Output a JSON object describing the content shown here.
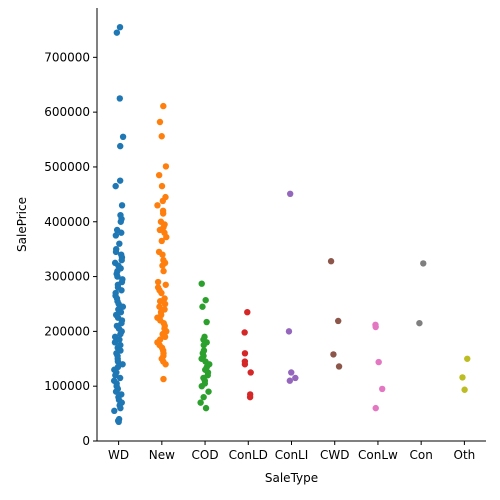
{
  "chart_data": {
    "type": "scatter",
    "subtype": "strip",
    "xlabel": "SaleType",
    "ylabel": "SalePrice",
    "ylim": [
      0,
      790000
    ],
    "yticks": [
      0,
      100000,
      200000,
      300000,
      400000,
      500000,
      600000,
      700000
    ],
    "grid": false,
    "categories": [
      "WD",
      "New",
      "COD",
      "ConLD",
      "ConLI",
      "CWD",
      "ConLw",
      "Con",
      "Oth"
    ],
    "colors": [
      "#1f77b4",
      "#ff7f0e",
      "#2ca02c",
      "#d62728",
      "#9467bd",
      "#8c564b",
      "#e377c2",
      "#7f7f7f",
      "#bcbd22"
    ],
    "series": [
      {
        "category": "WD",
        "values": [
          755000,
          745000,
          625000,
          555000,
          538000,
          475000,
          465000,
          430000,
          412000,
          405000,
          400000,
          385000,
          380000,
          375000,
          360000,
          350000,
          345000,
          340000,
          335000,
          330000,
          325000,
          320000,
          315000,
          310000,
          305000,
          300000,
          295000,
          290000,
          285000,
          280000,
          275000,
          270000,
          265000,
          260000,
          255000,
          250000,
          245000,
          240000,
          235000,
          230000,
          225000,
          220000,
          215000,
          210000,
          205000,
          200000,
          195000,
          190000,
          185000,
          180000,
          175000,
          170000,
          165000,
          160000,
          155000,
          150000,
          145000,
          140000,
          135000,
          130000,
          125000,
          120000,
          115000,
          110000,
          105000,
          100000,
          95000,
          90000,
          85000,
          80000,
          75000,
          70000,
          65000,
          60000,
          55000,
          40000,
          37000,
          35000
        ]
      },
      {
        "category": "New",
        "values": [
          611000,
          582000,
          556000,
          501000,
          485000,
          465000,
          445000,
          438000,
          430000,
          420000,
          415000,
          400000,
          395000,
          390000,
          385000,
          380000,
          372000,
          365000,
          345000,
          340000,
          330000,
          325000,
          320000,
          310000,
          290000,
          285000,
          280000,
          275000,
          270000,
          260000,
          255000,
          250000,
          245000,
          240000,
          235000,
          230000,
          225000,
          220000,
          215000,
          210000,
          205000,
          200000,
          195000,
          190000,
          185000,
          180000,
          175000,
          170000,
          165000,
          160000,
          155000,
          150000,
          145000,
          140000,
          113000
        ]
      },
      {
        "category": "COD",
        "values": [
          287000,
          257000,
          245000,
          217000,
          190000,
          185000,
          180000,
          175000,
          165000,
          160000,
          155000,
          150000,
          145000,
          140000,
          135000,
          130000,
          125000,
          120000,
          115000,
          110000,
          105000,
          100000,
          90000,
          80000,
          70000,
          60000
        ]
      },
      {
        "category": "ConLD",
        "values": [
          235000,
          198000,
          160000,
          145000,
          140000,
          125000,
          85000,
          80000
        ]
      },
      {
        "category": "ConLI",
        "values": [
          451000,
          200000,
          125000,
          115000,
          110000
        ]
      },
      {
        "category": "CWD",
        "values": [
          328000,
          219000,
          158000,
          136000
        ]
      },
      {
        "category": "ConLw",
        "values": [
          212000,
          208000,
          144000,
          95000,
          60000
        ]
      },
      {
        "category": "Con",
        "values": [
          324000,
          215000
        ]
      },
      {
        "category": "Oth",
        "values": [
          150000,
          116000,
          93500
        ]
      }
    ]
  }
}
